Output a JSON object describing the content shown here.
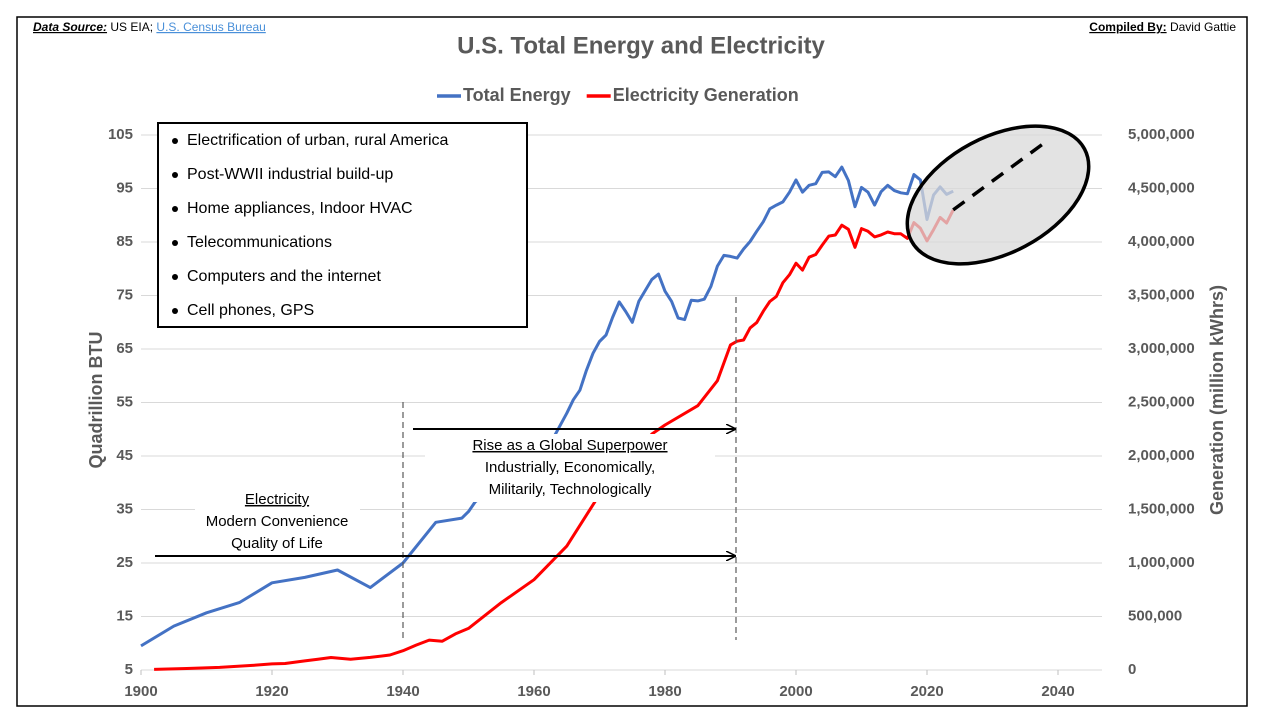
{
  "chart_data": {
    "type": "line",
    "title": "U.S. Total Energy and Electricity",
    "data_source": {
      "label": "Data Source:",
      "text": "US EIA;",
      "link": "U.S. Census Bureau"
    },
    "compiled_by": {
      "label": "Compiled By:",
      "text": "David Gattie"
    },
    "y_label": "Quadrillion BTU",
    "y2_label": "Generation (million kWhrs)",
    "xlim": [
      1900,
      2040
    ],
    "xticks": [
      1900,
      1920,
      1940,
      1960,
      1980,
      2000,
      2020,
      2040
    ],
    "ylim": [
      5,
      105
    ],
    "yticks": [
      5,
      15,
      25,
      35,
      45,
      55,
      65,
      75,
      85,
      95,
      105
    ],
    "y2lim": [
      0,
      5000000
    ],
    "y2ticks": [
      0,
      {
        "value": 500000,
        "label": "500,000"
      },
      {
        "value": 1000000,
        "label": "1,000,000"
      },
      {
        "value": 1500000,
        "label": "1,500,000"
      },
      {
        "value": 2000000,
        "label": "2,000,000"
      },
      {
        "value": 2500000,
        "label": "2,500,000"
      },
      {
        "value": 3000000,
        "label": "3,000,000"
      },
      {
        "value": 3500000,
        "label": "3,500,000"
      },
      {
        "value": 4000000,
        "label": "4,000,000"
      },
      {
        "value": 4500000,
        "label": "4,500,000"
      },
      {
        "value": 5000000,
        "label": "5,000,000"
      }
    ],
    "grid": true,
    "legend": "top",
    "series": [
      {
        "name": "Total Energy",
        "color": "#4472c4",
        "x": [
          1900,
          1905,
          1910,
          1915,
          1920,
          1925,
          1930,
          1935,
          1940,
          1945,
          1949,
          1950,
          1951,
          1955,
          1960,
          1963,
          1965,
          1966,
          1967,
          1968,
          1969,
          1970,
          1971,
          1972,
          1973,
          1974,
          1975,
          1976,
          1977,
          1978,
          1979,
          1980,
          1981,
          1982,
          1983,
          1984,
          1985,
          1986,
          1987,
          1988,
          1989,
          1990,
          1991,
          1992,
          1993,
          1994,
          1995,
          1996,
          1997,
          1998,
          1999,
          2000,
          2001,
          2002,
          2003,
          2004,
          2005,
          2006,
          2007,
          2008,
          2009,
          2010,
          2011,
          2012,
          2013,
          2014,
          2015,
          2016,
          2017,
          2018,
          2019,
          2020,
          2021,
          2022,
          2023,
          2024
        ],
        "values": [
          9.5,
          13.2,
          15.7,
          17.6,
          21.3,
          22.3,
          23.7,
          20.4,
          25.0,
          32.6,
          33.4,
          34.6,
          36.4,
          40.2,
          45.0,
          48.5,
          53.0,
          55.5,
          57.3,
          61.0,
          64.2,
          66.4,
          67.6,
          70.9,
          73.8,
          72.0,
          70.0,
          73.9,
          76.0,
          78.0,
          79.0,
          75.8,
          73.9,
          70.8,
          70.5,
          74.1,
          74.0,
          74.3,
          76.7,
          80.5,
          82.5,
          82.3,
          82.0,
          83.7,
          85.1,
          87.0,
          88.8,
          91.2,
          91.9,
          92.5,
          94.3,
          96.6,
          94.3,
          95.6,
          95.9,
          98.0,
          98.1,
          97.2,
          99.0,
          96.5,
          91.6,
          95.2,
          94.3,
          91.9,
          94.4,
          95.6,
          94.6,
          94.2,
          94.0,
          97.6,
          96.6,
          89.2,
          93.8,
          95.3,
          93.9,
          94.5
        ]
      },
      {
        "name": "Electricity Generation",
        "color": "#ff0000",
        "axis": "y2",
        "x": [
          1902,
          1907,
          1912,
          1917,
          1920,
          1922,
          1925,
          1927,
          1929,
          1932,
          1935,
          1938,
          1940,
          1942,
          1944,
          1946,
          1948,
          1950,
          1955,
          1960,
          1965,
          1970,
          1973,
          1975,
          1978,
          1980,
          1985,
          1988,
          1990,
          1991,
          1992,
          1993,
          1994,
          1995,
          1996,
          1997,
          1998,
          1999,
          2000,
          2001,
          2002,
          2003,
          2004,
          2005,
          2006,
          2007,
          2008,
          2009,
          2010,
          2011,
          2012,
          2013,
          2014,
          2015,
          2016,
          2017,
          2018,
          2019,
          2020,
          2021,
          2022,
          2023,
          2024
        ],
        "values": [
          6000,
          14000,
          24000,
          43000,
          57000,
          61000,
          85000,
          101000,
          117000,
          100000,
          118000,
          140000,
          180000,
          233000,
          279000,
          269000,
          337000,
          389000,
          630000,
          844000,
          1158000,
          1640000,
          1965000,
          2003000,
          2206000,
          2290000,
          2470000,
          2704000,
          3038000,
          3073000,
          3084000,
          3197000,
          3247000,
          3353000,
          3444000,
          3492000,
          3620000,
          3694000,
          3802000,
          3737000,
          3858000,
          3883000,
          3971000,
          4055000,
          4065000,
          4157000,
          4119000,
          3950000,
          4125000,
          4100000,
          4048000,
          4066000,
          4093000,
          4078000,
          4077000,
          4034000,
          4181000,
          4128000,
          4010000,
          4116000,
          4230000,
          4178000,
          4300000
        ]
      },
      {
        "color": "#000000",
        "axis": "y2",
        "dashed": true,
        "x": [
          2024,
          2038
        ],
        "values": [
          4300000,
          4930000
        ]
      }
    ],
    "bullets": [
      "Electrification of urban, rural America",
      "Post-WWII industrial build-up",
      "Home appliances, Indoor HVAC",
      "Telecommunications",
      "Computers and the internet",
      "Cell phones, GPS"
    ],
    "annotations": [
      {
        "heading": "Electricity",
        "lines": [
          "Modern Convenience",
          "Quality of Life"
        ]
      },
      {
        "heading": "Rise as a Global Superpower",
        "lines": [
          "Industrially, Economically,",
          "Militarily, Technologically"
        ]
      }
    ]
  }
}
